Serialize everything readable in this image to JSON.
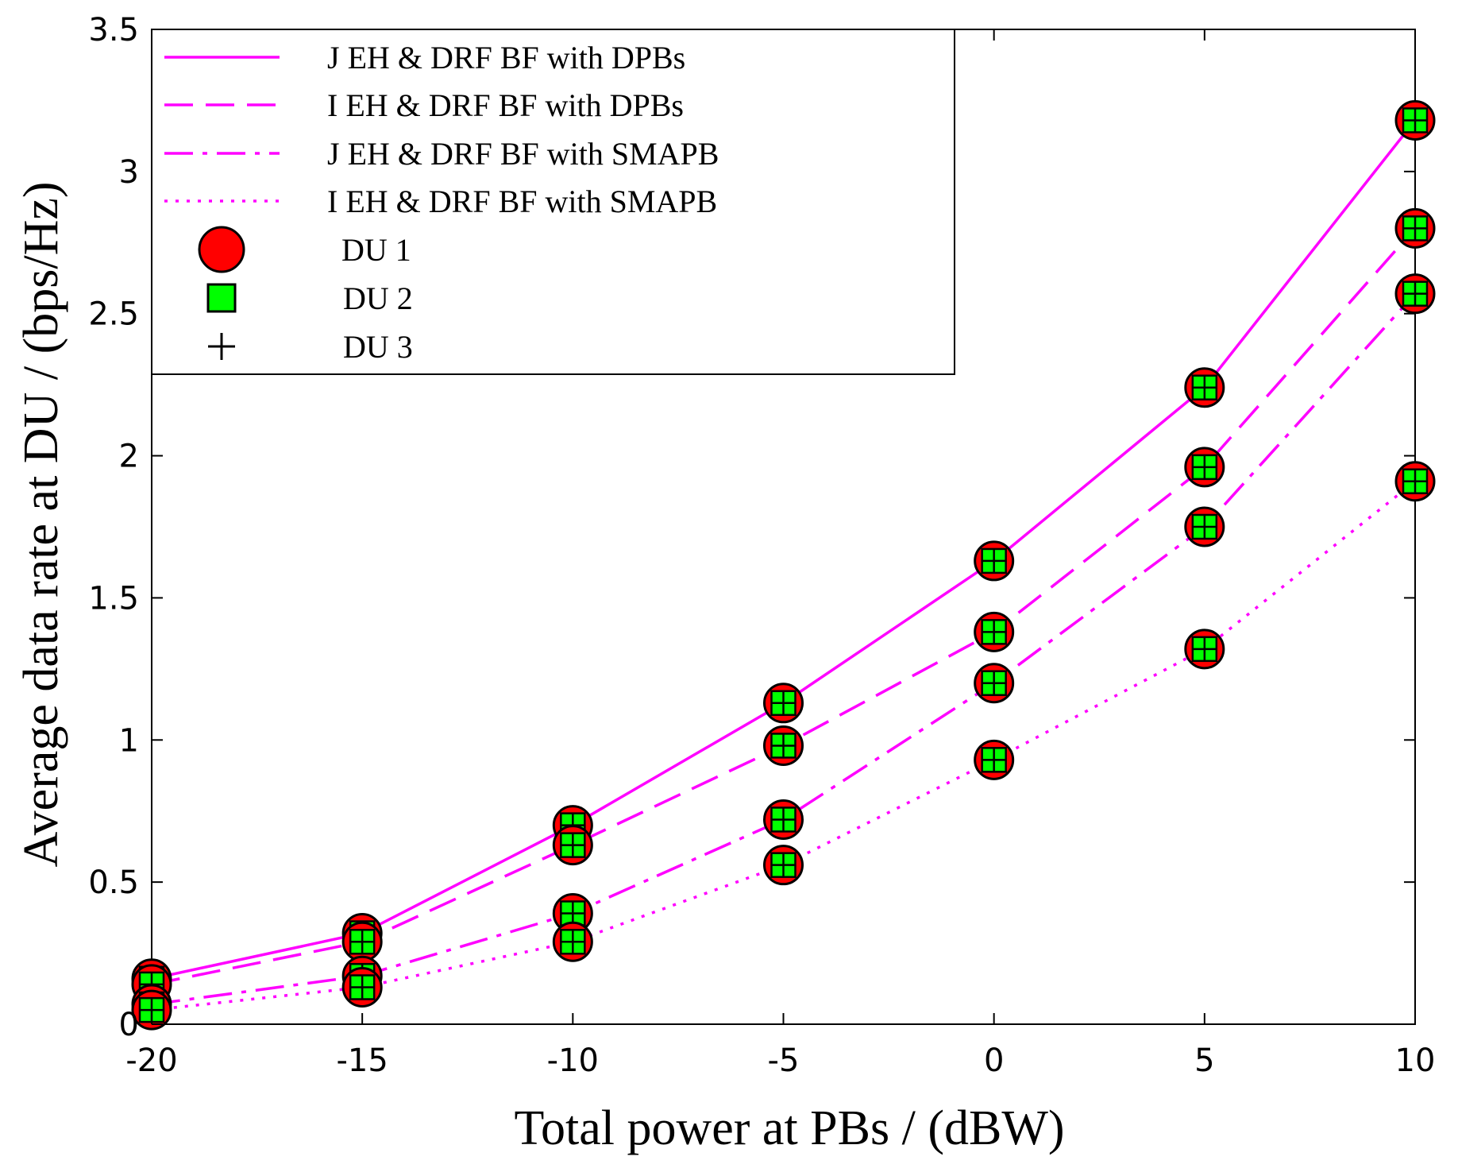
{
  "chart_data": {
    "type": "line",
    "title": "",
    "xlabel": "Total power at PBs / (dBW)",
    "ylabel": "Average data rate at DU / (bps/Hz)",
    "x": [
      -20,
      -15,
      -10,
      -5,
      0,
      5,
      10
    ],
    "xlim": [
      -20,
      10
    ],
    "ylim": [
      0,
      3.5
    ],
    "xticks": [
      -20,
      -15,
      -10,
      -5,
      0,
      5,
      10
    ],
    "xtick_labels": [
      "-20",
      "-15",
      "-10",
      "-5",
      "0",
      "5",
      "10"
    ],
    "yticks": [
      0,
      0.5,
      1,
      1.5,
      2,
      2.5,
      3,
      3.5
    ],
    "ytick_labels": [
      "0",
      "0.5",
      "1",
      "1.5",
      "2",
      "2.5",
      "3",
      "3.5"
    ],
    "grid": false,
    "legend_position": "top-left",
    "series": [
      {
        "name": "J EH & DRF BF with DPBs",
        "style": "solid",
        "color": "#ff00ff",
        "values": [
          0.16,
          0.32,
          0.7,
          1.13,
          1.63,
          2.24,
          3.18
        ]
      },
      {
        "name": "I EH & DRF BF with DPBs",
        "style": "dashed",
        "color": "#ff00ff",
        "values": [
          0.14,
          0.29,
          0.63,
          0.98,
          1.38,
          1.96,
          2.8
        ]
      },
      {
        "name": "J EH & DRF BF with SMAPB",
        "style": "dashdot",
        "color": "#ff00ff",
        "values": [
          0.07,
          0.17,
          0.39,
          0.72,
          1.2,
          1.75,
          2.57
        ]
      },
      {
        "name": "I EH & DRF BF with SMAPB",
        "style": "dotted",
        "color": "#ff00ff",
        "values": [
          0.05,
          0.13,
          0.29,
          0.56,
          0.93,
          1.32,
          1.91
        ]
      }
    ],
    "marker_legend": [
      {
        "name": "DU 1",
        "marker": "circle",
        "color": "#ff0000"
      },
      {
        "name": "DU 2",
        "marker": "square",
        "color": "#00ff00"
      },
      {
        "name": "DU 3",
        "marker": "plus",
        "color": "#000000"
      }
    ]
  }
}
